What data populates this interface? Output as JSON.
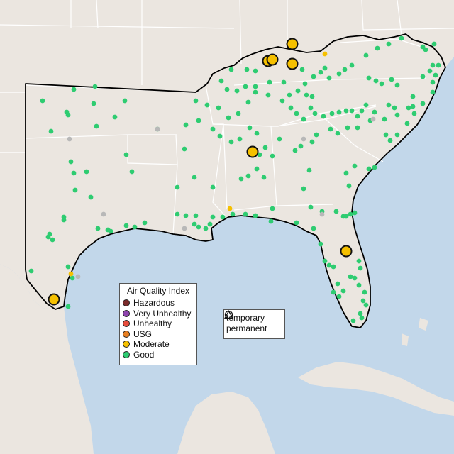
{
  "map": {
    "title": "",
    "region": "Southeastern United States",
    "colors": {
      "ocean": "#c2d7ea",
      "land": "#ebe6e0",
      "state_border": "#ffffff",
      "region_outline": "#000000",
      "good": "#2ecc71",
      "moderate": "#f5c000",
      "usg": "#e67e22",
      "unhealthy": "#e74c3c",
      "very_unhealthy": "#8e44ad",
      "hazardous": "#7b2a2a",
      "no_data": "#b8b8b8"
    }
  },
  "legend_aqi": {
    "title": "Air Quality Index",
    "items": [
      {
        "label": "Hazardous",
        "color": "#7b2a2a"
      },
      {
        "label": "Very Unhealthy",
        "color": "#8e44ad"
      },
      {
        "label": "Unhealthy",
        "color": "#e74c3c"
      },
      {
        "label": "USG",
        "color": "#e67e22"
      },
      {
        "label": "Moderate",
        "color": "#f5c000"
      },
      {
        "label": "Good",
        "color": "#2ecc71"
      }
    ]
  },
  "legend_type": {
    "items": [
      {
        "label": "temporary",
        "shape": "circle"
      },
      {
        "label": "permanent",
        "shape": "triangle"
      }
    ]
  }
}
